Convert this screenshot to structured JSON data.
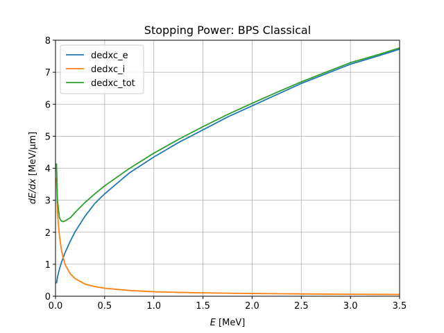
{
  "chart_data": {
    "type": "line",
    "title": "Stopping Power: BPS Classical",
    "xlabel_var": "E",
    "xlabel_unit": " [MeV]",
    "ylabel_var": "dE/dx",
    "ylabel_unit": " [MeV/μm]",
    "xlim": [
      0,
      3.5
    ],
    "ylim": [
      0,
      8
    ],
    "xticks": [
      0.0,
      0.5,
      1.0,
      1.5,
      2.0,
      2.5,
      3.0,
      3.5
    ],
    "yticks": [
      0,
      1,
      2,
      3,
      4,
      5,
      6,
      7,
      8
    ],
    "grid": true,
    "legend_position": "upper-left",
    "legend": [
      "dedxc_e",
      "dedxc_i",
      "dedxc_tot"
    ],
    "series": [
      {
        "name": "dedxc_e",
        "color": "#1f77b4",
        "x": [
          0.01,
          0.02,
          0.04,
          0.06,
          0.08,
          0.1,
          0.15,
          0.2,
          0.3,
          0.4,
          0.5,
          0.75,
          1.0,
          1.25,
          1.5,
          1.75,
          2.0,
          2.25,
          2.5,
          2.75,
          3.0,
          3.25,
          3.5
        ],
        "y": [
          0.4,
          0.6,
          0.85,
          1.05,
          1.22,
          1.38,
          1.72,
          2.02,
          2.5,
          2.9,
          3.2,
          3.85,
          4.35,
          4.8,
          5.2,
          5.6,
          5.95,
          6.3,
          6.65,
          6.95,
          7.25,
          7.48,
          7.72
        ]
      },
      {
        "name": "dedxc_i",
        "color": "#ff7f0e",
        "x": [
          0.01,
          0.02,
          0.04,
          0.06,
          0.08,
          0.1,
          0.15,
          0.2,
          0.3,
          0.4,
          0.5,
          0.75,
          1.0,
          1.25,
          1.5,
          1.75,
          2.0,
          2.25,
          2.5,
          2.75,
          3.0,
          3.25,
          3.5
        ],
        "y": [
          3.7,
          2.6,
          1.9,
          1.45,
          1.18,
          0.98,
          0.7,
          0.55,
          0.38,
          0.3,
          0.25,
          0.18,
          0.14,
          0.12,
          0.105,
          0.095,
          0.085,
          0.078,
          0.072,
          0.066,
          0.062,
          0.058,
          0.055
        ]
      },
      {
        "name": "dedxc_tot",
        "color": "#2ca02c",
        "x": [
          0.01,
          0.02,
          0.04,
          0.06,
          0.08,
          0.1,
          0.15,
          0.2,
          0.3,
          0.4,
          0.5,
          0.75,
          1.0,
          1.25,
          1.5,
          1.75,
          2.0,
          2.25,
          2.5,
          2.75,
          3.0,
          3.25,
          3.5
        ],
        "y": [
          4.15,
          3.0,
          2.45,
          2.35,
          2.33,
          2.36,
          2.45,
          2.62,
          2.93,
          3.2,
          3.45,
          3.99,
          4.47,
          4.9,
          5.3,
          5.68,
          6.03,
          6.37,
          6.7,
          7.0,
          7.3,
          7.52,
          7.76
        ]
      }
    ]
  }
}
